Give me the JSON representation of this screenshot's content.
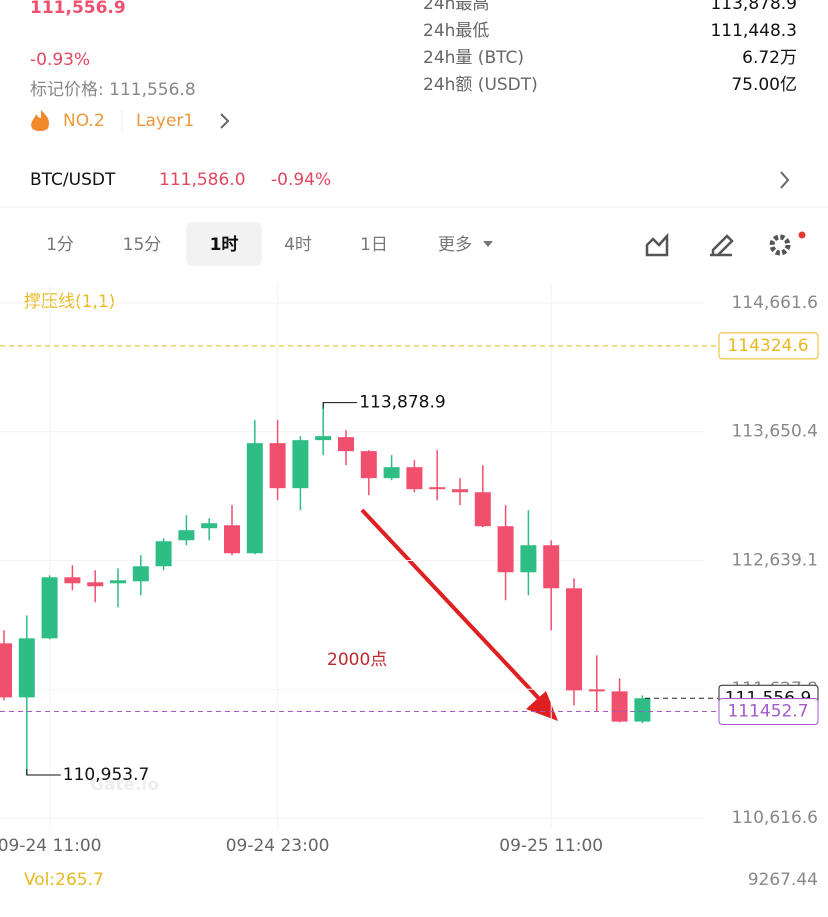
{
  "header": {
    "price": "111,556.9",
    "change": "-0.93%",
    "mark_price": "标记价格: 111,556.8",
    "rank": "NO.2",
    "tag": "Layer1",
    "stats": [
      {
        "label": "24h最高",
        "value": "113,878.9"
      },
      {
        "label": "24h最低",
        "value": "111,448.3"
      },
      {
        "label": "24h量 (BTC)",
        "value": "6.72万"
      },
      {
        "label": "24h额 (USDT)",
        "value": "75.00亿"
      }
    ]
  },
  "ticker": {
    "pair": "BTC/USDT",
    "price": "111,586.0",
    "change": "-0.94%"
  },
  "tabs": [
    "1分",
    "15分",
    "1时",
    "4时",
    "1日",
    "更多"
  ],
  "chart_data": {
    "type": "candlestick",
    "indicator": "撑压线(1,1)",
    "watermark": "Gate.io",
    "annotation": "2000点",
    "up_color": "#2ebd85",
    "down_color": "#f0506e",
    "categories": [
      null,
      null,
      "09-24 11:00",
      null,
      null,
      null,
      null,
      null,
      null,
      null,
      null,
      null,
      "09-24 23:00",
      null,
      null,
      null,
      null,
      null,
      null,
      null,
      null,
      null,
      null,
      null,
      "09-25 11:00",
      null,
      null,
      null,
      null
    ],
    "open": [
      111988.2,
      111563.6,
      112027.5,
      112507.1,
      112467.9,
      112460.0,
      112475.7,
      112593.6,
      112798.0,
      112892.4,
      112916.0,
      112695.8,
      113560.8,
      113206.9,
      113584.4,
      113608.0,
      113498.0,
      113285.6,
      113372.1,
      113214.8,
      113199.1,
      113175.5,
      112908.2,
      112546.5,
      112758.8,
      112420.6,
      111626.5,
      111610.8,
      111373.6
    ],
    "high": [
      112090.4,
      112208.3,
      112522.8,
      112601.5,
      112562.3,
      112577.9,
      112680.1,
      112813.8,
      112994.6,
      112971.0,
      113073.3,
      113741.6,
      113741.6,
      113615.8,
      113878.9,
      113663.0,
      113505.8,
      113466.4,
      113427.1,
      113505.8,
      113285.6,
      113387.8,
      113073.3,
      113034.0,
      112798.0,
      112499.3,
      111893.8,
      111713.0,
      111580.0
    ],
    "low": [
      111540.0,
      110953.7,
      112020.0,
      112404.9,
      112310.6,
      112271.2,
      112365.6,
      112562.3,
      112758.8,
      112798.0,
      112680.1,
      112688.0,
      113112.6,
      113034.0,
      113466.4,
      113387.8,
      113151.9,
      113269.9,
      113175.5,
      113112.6,
      113073.3,
      112900.3,
      112326.3,
      112365.6,
      112090.4,
      111500.7,
      111453.5,
      111367.0,
      111360.0
    ],
    "close": [
      111563.6,
      112027.5,
      112507.1,
      112460.0,
      112436.5,
      112483.6,
      112593.6,
      112790.2,
      112876.7,
      112931.7,
      112695.8,
      113560.8,
      113206.9,
      113584.4,
      113615.8,
      113498.0,
      113285.6,
      113372.1,
      113199.1,
      113199.1,
      113175.5,
      112908.2,
      112546.5,
      112758.8,
      112420.6,
      111618.6,
      111610.8,
      111373.6,
      111556.9
    ],
    "high_mark": {
      "value": 113878.9,
      "label": "113,878.9"
    },
    "low_mark": {
      "value": 110953.7,
      "label": "110,953.7"
    },
    "ylim": [
      110522,
      114803
    ],
    "yticks": [
      {
        "value": 114661.6,
        "label": "114,661.6"
      },
      {
        "value": 113650.4,
        "label": "113,650.4"
      },
      {
        "value": 112639.1,
        "label": "112,639.1"
      },
      {
        "value": 111627.8,
        "label": "111,627.8"
      },
      {
        "value": 110616.6,
        "label": "110,616.6"
      }
    ],
    "price_lines": [
      {
        "value": 114324.6,
        "color": "#e8b923"
      },
      {
        "value": {
          "value": 111556.9,
          "label": "111,556.9"
        },
        "color": "#222222"
      },
      {
        "value": 111452.7,
        "color": "#a25bc9"
      }
    ],
    "grid": true
  },
  "volume": {
    "label": "Vol:265.7",
    "max": "9267.44"
  }
}
